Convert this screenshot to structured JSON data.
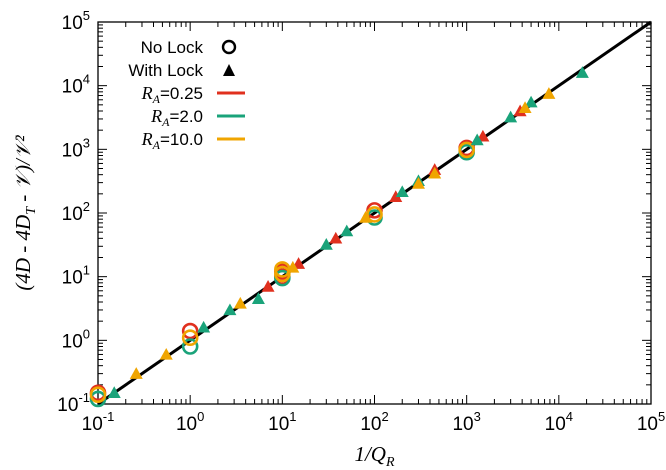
{
  "chart_data": {
    "type": "scatter",
    "title": "",
    "xlabel": "1/Q",
    "xlabel_sub": "R",
    "ylabel": "(4D - 4D",
    "ylabel_sub": "T",
    "ylabel_tail": " - 𝒱)/𝒱²",
    "xscale": "log",
    "yscale": "log",
    "xlim": [
      0.1,
      100000
    ],
    "ylim": [
      0.1,
      100000
    ],
    "grid": false,
    "legend_position": "top-left",
    "x_ticks": [
      {
        "base": "10",
        "exp": "-1",
        "value": 0.1
      },
      {
        "base": "10",
        "exp": "0",
        "value": 1
      },
      {
        "base": "10",
        "exp": "1",
        "value": 10
      },
      {
        "base": "10",
        "exp": "2",
        "value": 100
      },
      {
        "base": "10",
        "exp": "3",
        "value": 1000
      },
      {
        "base": "10",
        "exp": "4",
        "value": 10000
      },
      {
        "base": "10",
        "exp": "5",
        "value": 100000
      }
    ],
    "y_ticks": [
      {
        "base": "10",
        "exp": "-1",
        "value": 0.1
      },
      {
        "base": "10",
        "exp": "0",
        "value": 1
      },
      {
        "base": "10",
        "exp": "1",
        "value": 10
      },
      {
        "base": "10",
        "exp": "2",
        "value": 100
      },
      {
        "base": "10",
        "exp": "3",
        "value": 1000
      },
      {
        "base": "10",
        "exp": "4",
        "value": 10000
      },
      {
        "base": "10",
        "exp": "5",
        "value": 100000
      }
    ],
    "legend": {
      "markers": [
        {
          "label": "No Lock",
          "symbol": "circle"
        },
        {
          "label": "With Lock",
          "symbol": "triangle"
        }
      ],
      "colors": [
        {
          "prefix": "R",
          "sub": "A",
          "suffix": "=0.25",
          "color": "#e0301e"
        },
        {
          "prefix": "R",
          "sub": "A",
          "suffix": "=2.0",
          "color": "#1aa37a"
        },
        {
          "prefix": "R",
          "sub": "A",
          "suffix": "=10.0",
          "color": "#f0a500"
        }
      ]
    },
    "fit_line": {
      "x": [
        0.1,
        100000
      ],
      "y": [
        0.1,
        100000
      ],
      "color": "#000000"
    },
    "series": [
      {
        "marker": "circle",
        "color": "#e0301e",
        "x": [
          0.1,
          1,
          10,
          10,
          100,
          1000
        ],
        "y": [
          0.15,
          1.4,
          12,
          10,
          110,
          1050
        ]
      },
      {
        "marker": "circle",
        "color": "#1aa37a",
        "x": [
          0.1,
          1,
          10,
          100,
          1000
        ],
        "y": [
          0.12,
          0.8,
          9.5,
          85,
          900
        ]
      },
      {
        "marker": "circle",
        "color": "#f0a500",
        "x": [
          0.1,
          1,
          10,
          10,
          100,
          1000
        ],
        "y": [
          0.14,
          1.1,
          13,
          11,
          95,
          980
        ]
      },
      {
        "marker": "triangle",
        "color": "#e0301e",
        "x": [
          7,
          15,
          38,
          170,
          450,
          1500,
          3800
        ],
        "y": [
          7,
          16,
          40,
          180,
          480,
          1600,
          4000
        ]
      },
      {
        "marker": "triangle",
        "color": "#1aa37a",
        "x": [
          0.15,
          1.4,
          2.7,
          5.5,
          30,
          50,
          200,
          300,
          1300,
          3000,
          5000,
          18000
        ],
        "y": [
          0.15,
          1.6,
          3,
          4.5,
          32,
          52,
          215,
          320,
          1400,
          3200,
          5500,
          16000
        ],
        "comment_note": ""
      },
      {
        "marker": "triangle",
        "color": "#f0a500",
        "x": [
          0.26,
          0.55,
          3.5,
          13,
          80,
          300,
          450,
          4300,
          7800
        ],
        "y": [
          0.3,
          0.6,
          3.8,
          14,
          85,
          290,
          420,
          4500,
          7500
        ]
      }
    ]
  }
}
